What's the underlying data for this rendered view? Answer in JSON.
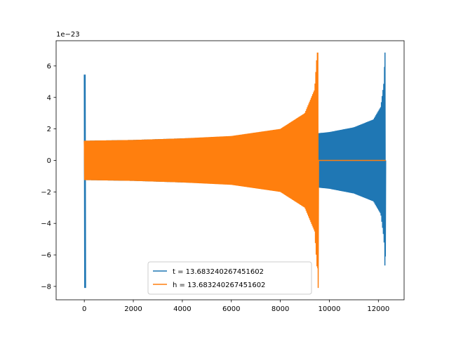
{
  "chart_data": {
    "type": "line",
    "title": "",
    "xlabel": "",
    "ylabel": "",
    "y_offset_label": "1e−23",
    "xlim": [
      -1150,
      13050
    ],
    "ylim": [
      -8.85,
      7.6
    ],
    "xticks": [
      0,
      2000,
      4000,
      6000,
      8000,
      10000,
      12000
    ],
    "xtick_labels": [
      "0",
      "2000",
      "4000",
      "6000",
      "8000",
      "10000",
      "12000"
    ],
    "yticks": [
      -8,
      -6,
      -4,
      -2,
      0,
      2,
      4,
      6
    ],
    "ytick_labels": [
      "−8",
      "−6",
      "−4",
      "−2",
      "0",
      "2",
      "4",
      "6"
    ],
    "grid": false,
    "legend_position": "lower center",
    "series": [
      {
        "name": "t = 13.683240267451602",
        "color": "#1f77b4",
        "description_values": {
          "initial_spike": {
            "x": 0,
            "ymax": 5.45,
            "ymin": -8.1
          },
          "chirp_start_x": 0,
          "chirp_merger_x": 12270,
          "chirp_end_x": 12300,
          "amplitude_at": [
            {
              "x": 0,
              "amp": 1.25
            },
            {
              "x": 2000,
              "amp": 1.3
            },
            {
              "x": 4000,
              "amp": 1.4
            },
            {
              "x": 6000,
              "amp": 1.5
            },
            {
              "x": 8000,
              "amp": 1.6
            },
            {
              "x": 9500,
              "amp": 1.72
            },
            {
              "x": 10000,
              "amp": 1.8
            },
            {
              "x": 11000,
              "amp": 2.1
            },
            {
              "x": 11800,
              "amp": 2.6
            },
            {
              "x": 12100,
              "amp": 3.4
            },
            {
              "x": 12230,
              "amp": 5.0
            },
            {
              "x": 12270,
              "amp": 6.85
            }
          ],
          "merger_min": -6.1
        }
      },
      {
        "name": "h = 13.683240267451602",
        "color": "#ff7f0e",
        "description_values": {
          "chirp_start_x": 0,
          "chirp_merger_x": 9530,
          "flat_end_x": 12300,
          "amplitude_at": [
            {
              "x": 0,
              "amp": 1.25
            },
            {
              "x": 2000,
              "amp": 1.3
            },
            {
              "x": 4000,
              "amp": 1.4
            },
            {
              "x": 6000,
              "amp": 1.55
            },
            {
              "x": 8000,
              "amp": 2.0
            },
            {
              "x": 9000,
              "amp": 3.0
            },
            {
              "x": 9400,
              "amp": 4.5
            },
            {
              "x": 9500,
              "amp": 6.85
            }
          ],
          "merger_min": -8.1
        }
      }
    ]
  }
}
